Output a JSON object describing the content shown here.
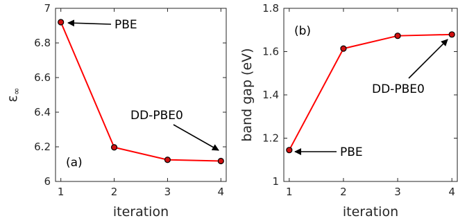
{
  "colors": {
    "line": "#ff0000",
    "marker_fill": "#d01010",
    "marker_edge": "#000000",
    "axis": "#262626"
  },
  "chart_data": [
    {
      "type": "line",
      "panel_label": "(a)",
      "xlabel": "iteration",
      "ylabel": "ε",
      "ylabel_subscript": "∞",
      "x": [
        1,
        2,
        3,
        4
      ],
      "values": [
        6.92,
        6.197,
        6.125,
        6.118
      ],
      "xlim": [
        0.9,
        4.1
      ],
      "ylim": [
        6.0,
        7.0
      ],
      "xticks": [
        "1",
        "2",
        "3",
        "4"
      ],
      "yticks": [
        "6",
        "6.2",
        "6.4",
        "6.6",
        "6.8",
        "7"
      ],
      "ytick_values": [
        6.0,
        6.2,
        6.4,
        6.6,
        6.8,
        7.0
      ],
      "annotations": [
        {
          "text": "PBE",
          "x": 1,
          "y": 6.92
        },
        {
          "text": "DD-PBE0",
          "x": 4,
          "y": 6.118
        }
      ]
    },
    {
      "type": "line",
      "panel_label": "(b)",
      "xlabel": "iteration",
      "ylabel": "band gap (eV)",
      "x": [
        1,
        2,
        3,
        4
      ],
      "values": [
        1.145,
        1.614,
        1.673,
        1.679
      ],
      "xlim": [
        0.9,
        4.1
      ],
      "ylim": [
        1.0,
        1.8
      ],
      "xticks": [
        "1",
        "2",
        "3",
        "4"
      ],
      "yticks": [
        "1",
        "1.2",
        "1.4",
        "1.6",
        "1.8"
      ],
      "ytick_values": [
        1.0,
        1.2,
        1.4,
        1.6,
        1.8
      ],
      "annotations": [
        {
          "text": "PBE",
          "x": 1,
          "y": 1.145
        },
        {
          "text": "DD-PBE0",
          "x": 4,
          "y": 1.679
        }
      ]
    }
  ]
}
